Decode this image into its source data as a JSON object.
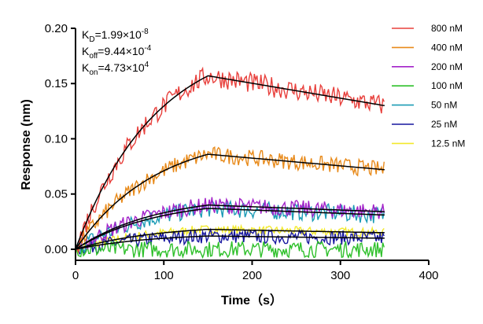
{
  "chart_data": {
    "type": "line",
    "xlabel": "Time（s）",
    "ylabel": "Response (nm)",
    "xlim": [
      0,
      400
    ],
    "ylim": [
      -0.01,
      0.2
    ],
    "x_ticks": [
      "0",
      "100",
      "200",
      "300",
      "400"
    ],
    "y_ticks": [
      "0.00",
      "0.05",
      "0.10",
      "0.15",
      "0.20"
    ],
    "grid": false,
    "legend_position": "top-right",
    "annotations": {
      "kd": {
        "main": "K",
        "sub": "D",
        "eq": "=1.99×10",
        "exp": "-8"
      },
      "koff": {
        "main": "K",
        "sub": "off",
        "eq": "=9.44×10",
        "exp": "-4"
      },
      "kon": {
        "main": "K",
        "sub": "on",
        "eq": "=4.73×10",
        "exp": "4"
      }
    },
    "association_end_s": 150,
    "end_s": 350,
    "series": [
      {
        "name": "800 nM",
        "color": "#e8403c",
        "fit_peak": 0.157,
        "fit_end": 0.13
      },
      {
        "name": "400 nM",
        "color": "#e88a1a",
        "fit_peak": 0.086,
        "fit_end": 0.072
      },
      {
        "name": "200 nM",
        "color": "#a323c9",
        "fit_peak": 0.04,
        "fit_end": 0.034
      },
      {
        "name": "100 nM",
        "color": "#2ec02a",
        "fit_peak": 0.0,
        "fit_end": 0.0
      },
      {
        "name": "50 nM",
        "color": "#1b9bb5",
        "fit_peak": 0.037,
        "fit_end": 0.031
      },
      {
        "name": "25 nM",
        "color": "#16169e",
        "fit_peak": 0.012,
        "fit_end": 0.01
      },
      {
        "name": "12.5 nM",
        "color": "#f2e92c",
        "fit_peak": 0.018,
        "fit_end": 0.015
      }
    ],
    "fit_color": "#000000"
  }
}
